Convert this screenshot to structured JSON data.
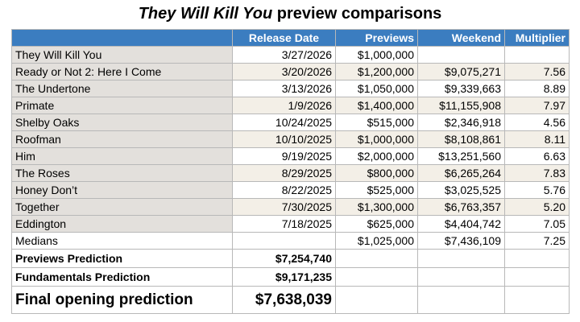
{
  "title": {
    "emphasis": "They Will Kill You",
    "rest": " preview comparisons"
  },
  "table": {
    "header": [
      "Release Date",
      "Previews",
      "Weekend",
      "Multiplier"
    ],
    "rows": [
      [
        "They Will Kill You",
        "3/27/2026",
        "$1,000,000",
        null,
        null
      ],
      [
        "Ready or Not 2: Here I Come",
        "3/20/2026",
        "$1,200,000",
        "$9,075,271",
        "7.56"
      ],
      [
        "The Undertone",
        "3/13/2026",
        "$1,050,000",
        "$9,339,663",
        "8.89"
      ],
      [
        "Primate",
        "1/9/2026",
        "$1,400,000",
        "$11,155,908",
        "7.97"
      ],
      [
        "Shelby Oaks",
        "10/24/2025",
        "$515,000",
        "$2,346,918",
        "4.56"
      ],
      [
        "Roofman",
        "10/10/2025",
        "$1,000,000",
        "$8,108,861",
        "8.11"
      ],
      [
        "Him",
        "9/19/2025",
        "$2,000,000",
        "$13,251,560",
        "6.63"
      ],
      [
        "The Roses",
        "8/29/2025",
        "$800,000",
        "$6,265,264",
        "7.83"
      ],
      [
        "Honey Don’t",
        "8/22/2025",
        "$525,000",
        "$3,025,525",
        "5.76"
      ],
      [
        "Together",
        "7/30/2025",
        "$1,300,000",
        "$6,763,357",
        "5.20"
      ],
      [
        "Eddington",
        "7/18/2025",
        "$625,000",
        "$4,404,742",
        "7.05"
      ]
    ],
    "medians": [
      "Medians",
      null,
      "$1,025,000",
      "$7,436,109",
      "7.25"
    ],
    "predictions": [
      [
        "Previews Prediction",
        "$7,254,740"
      ],
      [
        "Fundamentals Prediction",
        "$9,171,235"
      ],
      [
        "Final opening prediction",
        "$7,638,039"
      ]
    ]
  }
}
